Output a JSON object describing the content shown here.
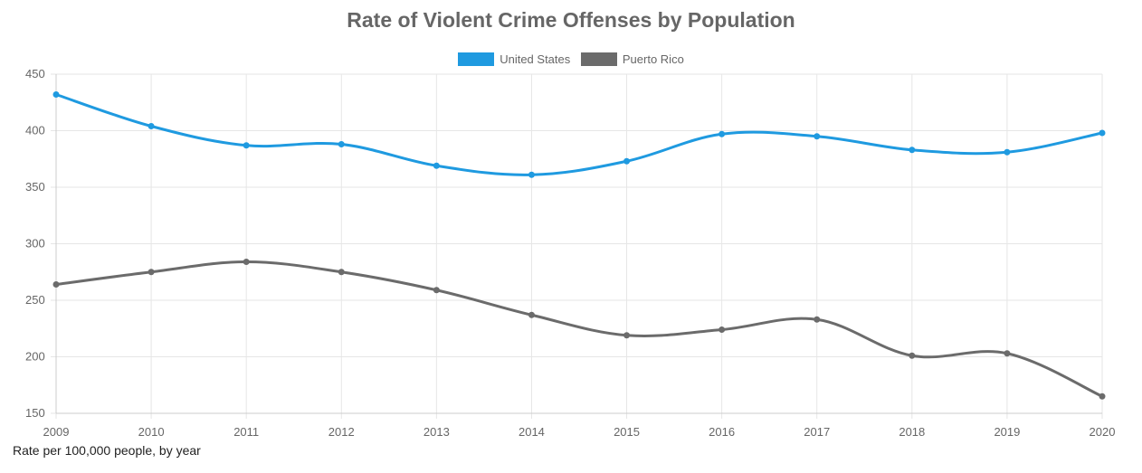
{
  "chart_data": {
    "type": "line",
    "title": "Rate of Violent Crime Offenses by Population",
    "xlabel": "Rate per 100,000 people, by year",
    "ylabel": "",
    "x": [
      2009,
      2010,
      2011,
      2012,
      2013,
      2014,
      2015,
      2016,
      2017,
      2018,
      2019,
      2020
    ],
    "yticks": [
      150,
      200,
      250,
      300,
      350,
      400,
      450
    ],
    "ylim": [
      150,
      450
    ],
    "grid": true,
    "legend_position": "top-center",
    "series": [
      {
        "name": "United States",
        "color": "#1f9ae0",
        "values": [
          432,
          404,
          387,
          388,
          369,
          361,
          373,
          397,
          395,
          383,
          381,
          398
        ]
      },
      {
        "name": "Puerto Rico",
        "color": "#6b6b6b",
        "values": [
          264,
          275,
          284,
          275,
          259,
          237,
          219,
          224,
          233,
          201,
          203,
          165
        ]
      }
    ]
  }
}
